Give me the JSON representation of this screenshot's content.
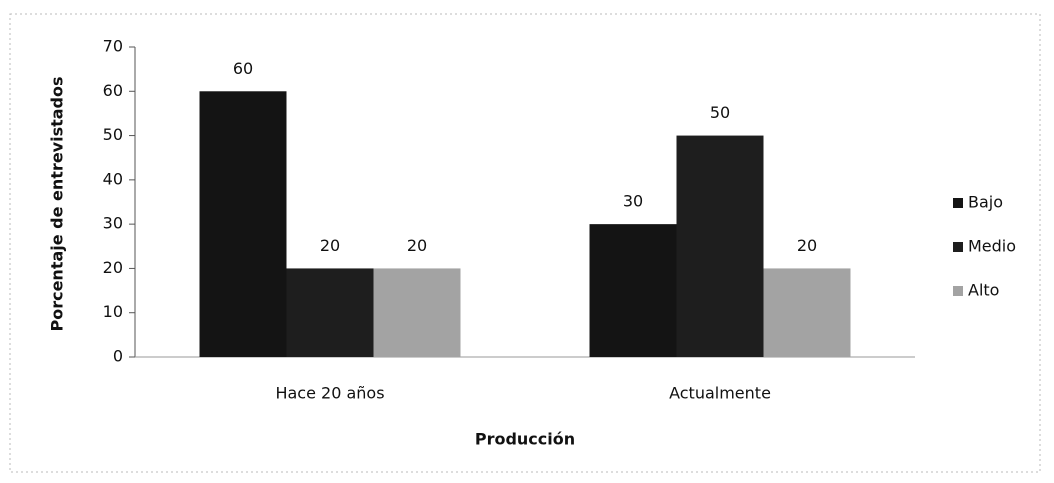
{
  "chart_data": {
    "type": "bar",
    "categories": [
      "Hace 20 años",
      "Actualmente"
    ],
    "series": [
      {
        "name": "Bajo",
        "color": "#141414",
        "values": [
          60,
          30
        ]
      },
      {
        "name": "Medio",
        "color": "#1e1e1e",
        "values": [
          20,
          50
        ]
      },
      {
        "name": "Alto",
        "color": "#a3a3a3",
        "values": [
          20,
          20
        ]
      }
    ],
    "ylim": [
      0,
      70
    ],
    "yticks": [
      0,
      10,
      20,
      30,
      40,
      50,
      60,
      70
    ],
    "xlabel": "Producción",
    "ylabel": "Porcentaje de entrevistados",
    "legend": "right"
  }
}
